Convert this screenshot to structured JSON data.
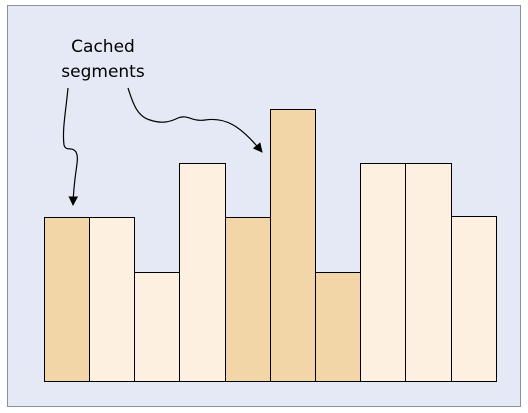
{
  "annotation": {
    "lines": [
      "Cached",
      "segments"
    ]
  }
}
